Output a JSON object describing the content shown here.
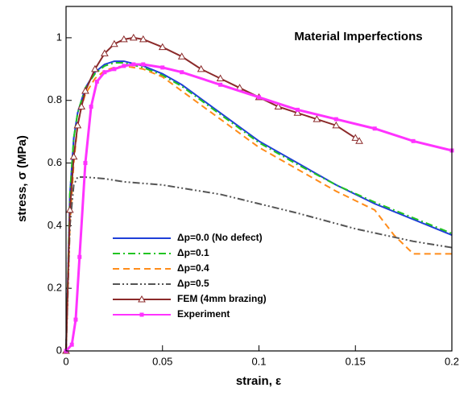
{
  "chart_data": {
    "type": "line",
    "annotation": "Material Imperfections",
    "x_label": "strain, ε",
    "y_label": "stress, σ (MPa)",
    "xlim": [
      0,
      0.2
    ],
    "ylim": [
      0,
      1.1
    ],
    "xticks": [
      0,
      0.05,
      0.1,
      0.15,
      0.2
    ],
    "yticks": [
      0,
      0.2,
      0.4,
      0.6,
      0.8,
      1
    ],
    "series": [
      {
        "name": "Δp=0.0 (No defect)",
        "color": "#1f3fd8",
        "line_style": "solid",
        "x": [
          0,
          0.002,
          0.004,
          0.006,
          0.008,
          0.01,
          0.015,
          0.02,
          0.025,
          0.03,
          0.04,
          0.05,
          0.06,
          0.08,
          0.1,
          0.12,
          0.14,
          0.16,
          0.18,
          0.2
        ],
        "values": [
          0,
          0.5,
          0.68,
          0.76,
          0.8,
          0.84,
          0.89,
          0.915,
          0.925,
          0.925,
          0.91,
          0.885,
          0.85,
          0.76,
          0.67,
          0.6,
          0.53,
          0.47,
          0.42,
          0.37
        ]
      },
      {
        "name": "Δp=0.1",
        "color": "#22c422",
        "line_style": "dashdot",
        "x": [
          0,
          0.002,
          0.004,
          0.006,
          0.008,
          0.01,
          0.015,
          0.02,
          0.025,
          0.03,
          0.04,
          0.05,
          0.06,
          0.08,
          0.1,
          0.12,
          0.14,
          0.16,
          0.18,
          0.2
        ],
        "values": [
          0,
          0.5,
          0.68,
          0.76,
          0.8,
          0.84,
          0.885,
          0.91,
          0.92,
          0.92,
          0.905,
          0.88,
          0.845,
          0.755,
          0.665,
          0.595,
          0.53,
          0.475,
          0.425,
          0.375
        ]
      },
      {
        "name": "Δp=0.4",
        "color": "#ff8c1a",
        "line_style": "dashed",
        "x": [
          0,
          0.002,
          0.004,
          0.006,
          0.008,
          0.01,
          0.015,
          0.02,
          0.025,
          0.03,
          0.04,
          0.05,
          0.06,
          0.08,
          0.1,
          0.12,
          0.14,
          0.16,
          0.17,
          0.18,
          0.19,
          0.2
        ],
        "values": [
          0,
          0.4,
          0.6,
          0.72,
          0.78,
          0.82,
          0.87,
          0.895,
          0.905,
          0.91,
          0.9,
          0.875,
          0.83,
          0.74,
          0.65,
          0.58,
          0.51,
          0.45,
          0.37,
          0.31,
          0.31,
          0.31
        ]
      },
      {
        "name": "Δp=0.5",
        "color": "#555555",
        "line_style": "dashdotdot",
        "x": [
          0,
          0.002,
          0.004,
          0.006,
          0.01,
          0.02,
          0.03,
          0.05,
          0.08,
          0.1,
          0.12,
          0.15,
          0.18,
          0.2
        ],
        "values": [
          0,
          0.4,
          0.53,
          0.555,
          0.555,
          0.55,
          0.54,
          0.53,
          0.5,
          0.47,
          0.44,
          0.39,
          0.35,
          0.33
        ]
      },
      {
        "name": "FEM (4mm brazing)",
        "color": "#8b2a2a",
        "line_style": "solid",
        "marker": "triangle",
        "x": [
          0,
          0.002,
          0.004,
          0.006,
          0.008,
          0.01,
          0.015,
          0.02,
          0.025,
          0.03,
          0.035,
          0.04,
          0.05,
          0.06,
          0.07,
          0.08,
          0.09,
          0.1,
          0.11,
          0.12,
          0.13,
          0.14,
          0.15,
          0.152
        ],
        "values": [
          0,
          0.45,
          0.62,
          0.72,
          0.78,
          0.83,
          0.9,
          0.95,
          0.98,
          0.995,
          1.0,
          0.995,
          0.97,
          0.94,
          0.9,
          0.87,
          0.84,
          0.81,
          0.78,
          0.76,
          0.74,
          0.72,
          0.68,
          0.67
        ]
      },
      {
        "name": "Experiment",
        "color": "#ff33ff",
        "line_style": "solid",
        "marker": "square",
        "x": [
          0,
          0.003,
          0.005,
          0.007,
          0.01,
          0.013,
          0.016,
          0.02,
          0.025,
          0.03,
          0.035,
          0.04,
          0.05,
          0.06,
          0.08,
          0.1,
          0.12,
          0.14,
          0.16,
          0.18,
          0.2
        ],
        "values": [
          0,
          0.02,
          0.1,
          0.3,
          0.6,
          0.78,
          0.86,
          0.89,
          0.9,
          0.91,
          0.915,
          0.915,
          0.905,
          0.89,
          0.85,
          0.81,
          0.77,
          0.74,
          0.71,
          0.67,
          0.64
        ]
      }
    ]
  }
}
